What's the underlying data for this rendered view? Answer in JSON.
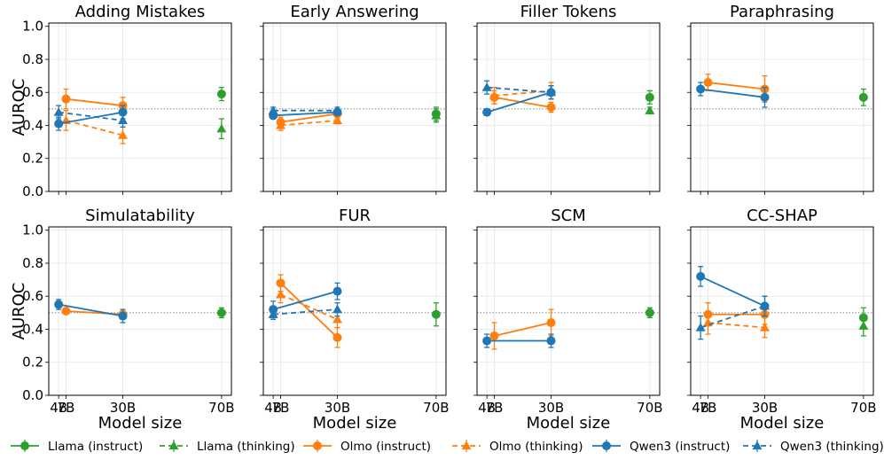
{
  "chart_data": {
    "type": "line",
    "ylabel": "AUROC",
    "xlabel": "Model size",
    "x_ticks": [
      "4B",
      "7B",
      "30B",
      "70B"
    ],
    "y_ticks": [
      "0.0",
      "0.2",
      "0.4",
      "0.6",
      "0.8",
      "1.0"
    ],
    "ylim": [
      0,
      1.02
    ],
    "reference_line": 0.5,
    "grid": true,
    "legend_position": "bottom",
    "legend": [
      {
        "key": "llama_instruct",
        "label": "Llama (instruct)",
        "color": "#2ca02c",
        "dashed": false,
        "marker": "circle"
      },
      {
        "key": "llama_thinking",
        "label": "Llama (thinking)",
        "color": "#2ca02c",
        "dashed": true,
        "marker": "triangle"
      },
      {
        "key": "olmo_instruct",
        "label": "Olmo (instruct)",
        "color": "#ff7f0e",
        "dashed": false,
        "marker": "circle"
      },
      {
        "key": "olmo_thinking",
        "label": "Olmo (thinking)",
        "color": "#ff7f0e",
        "dashed": true,
        "marker": "triangle"
      },
      {
        "key": "qwen_instruct",
        "label": "Qwen3 (instruct)",
        "color": "#1f77b4",
        "dashed": false,
        "marker": "circle"
      },
      {
        "key": "qwen_thinking",
        "label": "Qwen3 (thinking)",
        "color": "#1f77b4",
        "dashed": true,
        "marker": "triangle"
      }
    ],
    "panels": [
      {
        "title": "Adding Mistakes",
        "series": {
          "llama_instruct": [
            [
              70,
              0.59,
              0.04
            ]
          ],
          "llama_thinking": [
            [
              70,
              0.38,
              0.06
            ]
          ],
          "olmo_instruct": [
            [
              7,
              0.56,
              0.06
            ],
            [
              30,
              0.52,
              0.05
            ]
          ],
          "olmo_thinking": [
            [
              7,
              0.43,
              0.06
            ],
            [
              30,
              0.34,
              0.05
            ]
          ],
          "qwen_instruct": [
            [
              4,
              0.41,
              0.04
            ],
            [
              30,
              0.48,
              0.04
            ]
          ],
          "qwen_thinking": [
            [
              4,
              0.48,
              0.04
            ],
            [
              30,
              0.43,
              0.04
            ]
          ]
        }
      },
      {
        "title": "Early Answering",
        "series": {
          "llama_instruct": [
            [
              70,
              0.47,
              0.04
            ]
          ],
          "llama_thinking": [
            [
              70,
              0.46,
              0.04
            ]
          ],
          "olmo_instruct": [
            [
              7,
              0.42,
              0.03
            ],
            [
              30,
              0.47,
              0.03
            ]
          ],
          "olmo_thinking": [
            [
              7,
              0.4,
              0.03
            ],
            [
              30,
              0.43,
              0.02
            ]
          ],
          "qwen_instruct": [
            [
              4,
              0.46,
              0.02
            ],
            [
              30,
              0.48,
              0.02
            ]
          ],
          "qwen_thinking": [
            [
              4,
              0.49,
              0.02
            ],
            [
              30,
              0.49,
              0.02
            ]
          ]
        }
      },
      {
        "title": "Filler Tokens",
        "series": {
          "llama_instruct": [
            [
              70,
              0.57,
              0.04
            ]
          ],
          "llama_thinking": [
            [
              70,
              0.49,
              0.02
            ]
          ],
          "olmo_instruct": [
            [
              7,
              0.57,
              0.04
            ],
            [
              30,
              0.51,
              0.03
            ]
          ],
          "olmo_thinking": [
            [
              7,
              0.58,
              0.05
            ],
            [
              30,
              0.61,
              0.05
            ]
          ],
          "qwen_instruct": [
            [
              4,
              0.48,
              0.02
            ],
            [
              30,
              0.6,
              0.04
            ]
          ],
          "qwen_thinking": [
            [
              4,
              0.63,
              0.04
            ],
            [
              30,
              0.6,
              0.04
            ]
          ]
        }
      },
      {
        "title": "Paraphrasing",
        "series": {
          "llama_instruct": [
            [
              70,
              0.57,
              0.05
            ]
          ],
          "olmo_instruct": [
            [
              7,
              0.66,
              0.05
            ],
            [
              30,
              0.62,
              0.08
            ]
          ],
          "qwen_instruct": [
            [
              4,
              0.62,
              0.04
            ],
            [
              30,
              0.57,
              0.06
            ]
          ]
        }
      },
      {
        "title": "Simulatability",
        "series": {
          "llama_instruct": [
            [
              70,
              0.5,
              0.03
            ]
          ],
          "olmo_instruct": [
            [
              7,
              0.51,
              0.01
            ],
            [
              30,
              0.49,
              0.03
            ]
          ],
          "qwen_instruct": [
            [
              4,
              0.55,
              0.03
            ],
            [
              30,
              0.48,
              0.04
            ]
          ]
        }
      },
      {
        "title": "FUR",
        "series": {
          "llama_instruct": [
            [
              70,
              0.49,
              0.07
            ]
          ],
          "olmo_instruct": [
            [
              7,
              0.68,
              0.05
            ],
            [
              30,
              0.35,
              0.06
            ]
          ],
          "olmo_thinking": [
            [
              7,
              0.61,
              0.05
            ],
            [
              30,
              0.46,
              0.05
            ]
          ],
          "qwen_instruct": [
            [
              4,
              0.52,
              0.05
            ],
            [
              30,
              0.63,
              0.05
            ]
          ],
          "qwen_thinking": [
            [
              4,
              0.49,
              0.03
            ],
            [
              30,
              0.52,
              0.04
            ]
          ]
        }
      },
      {
        "title": "SCM",
        "series": {
          "llama_instruct": [
            [
              70,
              0.5,
              0.03
            ]
          ],
          "olmo_instruct": [
            [
              7,
              0.36,
              0.08
            ],
            [
              30,
              0.44,
              0.08
            ]
          ],
          "qwen_instruct": [
            [
              4,
              0.33,
              0.04
            ],
            [
              30,
              0.33,
              0.04
            ]
          ]
        }
      },
      {
        "title": "CC-SHAP",
        "series": {
          "llama_instruct": [
            [
              70,
              0.47,
              0.06
            ]
          ],
          "llama_thinking": [
            [
              70,
              0.42,
              0.06
            ]
          ],
          "olmo_instruct": [
            [
              7,
              0.49,
              0.07
            ],
            [
              30,
              0.49,
              0.06
            ]
          ],
          "olmo_thinking": [
            [
              7,
              0.44,
              0.07
            ],
            [
              30,
              0.41,
              0.06
            ]
          ],
          "qwen_instruct": [
            [
              4,
              0.72,
              0.06
            ],
            [
              30,
              0.54,
              0.06
            ]
          ],
          "qwen_thinking": [
            [
              4,
              0.41,
              0.07
            ],
            [
              30,
              0.54,
              0.06
            ]
          ]
        }
      }
    ]
  }
}
